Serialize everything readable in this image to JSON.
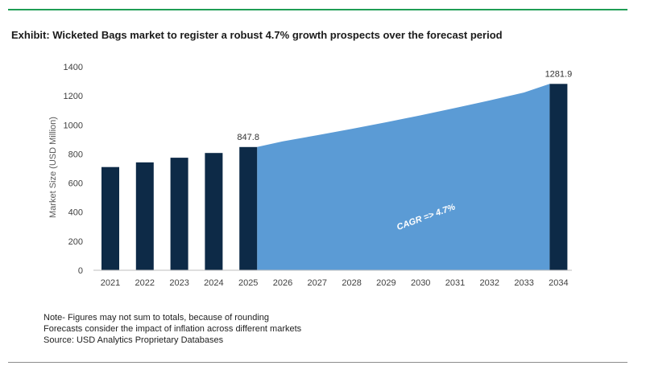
{
  "title": "Exhibit: Wicketed Bags market to register a robust 4.7% growth prospects over the forecast period",
  "chart_data": {
    "type": "bar",
    "ylabel": "Market Size (USD Million)",
    "xlabel": "",
    "ylim": [
      0,
      1400
    ],
    "yticks": [
      0,
      200,
      400,
      600,
      800,
      1000,
      1200,
      1400
    ],
    "grid": false,
    "categories": [
      "2021",
      "2022",
      "2023",
      "2024",
      "2025",
      "2026",
      "2027",
      "2028",
      "2029",
      "2030",
      "2031",
      "2032",
      "2033",
      "2034"
    ],
    "bars": [
      {
        "x": "2021",
        "value": 710
      },
      {
        "x": "2022",
        "value": 742
      },
      {
        "x": "2023",
        "value": 774
      },
      {
        "x": "2024",
        "value": 807
      },
      {
        "x": "2025",
        "value": 847.8,
        "label": "847.8"
      },
      {
        "x": "2034",
        "value": 1281.9,
        "label": "1281.9"
      }
    ],
    "area": {
      "x": [
        "2025",
        "2026",
        "2027",
        "2028",
        "2029",
        "2030",
        "2031",
        "2032",
        "2033",
        "2034"
      ],
      "values": [
        847.8,
        887,
        929,
        972,
        1018,
        1066,
        1116,
        1168,
        1223,
        1281.9
      ]
    },
    "annotation": "CAGR => 4.7%",
    "colors": {
      "bar": "#0d2a47",
      "area": "#5b9bd5",
      "annotation_text": "#ffffff"
    }
  },
  "notes": [
    "Note- Figures may not sum to totals, because of rounding",
    "Forecasts consider the impact of inflation across different markets",
    "Source: USD Analytics Proprietary Databases"
  ]
}
